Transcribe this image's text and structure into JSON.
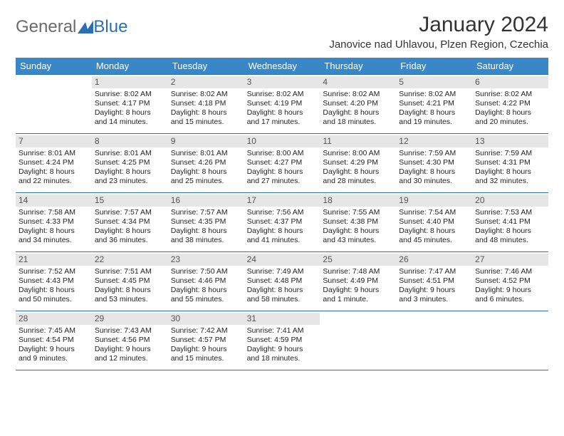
{
  "brand": {
    "general": "General",
    "blue": "Blue"
  },
  "title": "January 2024",
  "location": "Janovice nad Uhlavou, Plzen Region, Czechia",
  "colors": {
    "header_bg": "#3a87c8",
    "border": "#2a6fb5",
    "daynum_bg": "#e6e6e6"
  },
  "dow": [
    "Sunday",
    "Monday",
    "Tuesday",
    "Wednesday",
    "Thursday",
    "Friday",
    "Saturday"
  ],
  "weeks": [
    [
      {
        "n": "",
        "l1": "",
        "l2": "",
        "l3": "",
        "l4": ""
      },
      {
        "n": "1",
        "l1": "Sunrise: 8:02 AM",
        "l2": "Sunset: 4:17 PM",
        "l3": "Daylight: 8 hours",
        "l4": "and 14 minutes."
      },
      {
        "n": "2",
        "l1": "Sunrise: 8:02 AM",
        "l2": "Sunset: 4:18 PM",
        "l3": "Daylight: 8 hours",
        "l4": "and 15 minutes."
      },
      {
        "n": "3",
        "l1": "Sunrise: 8:02 AM",
        "l2": "Sunset: 4:19 PM",
        "l3": "Daylight: 8 hours",
        "l4": "and 17 minutes."
      },
      {
        "n": "4",
        "l1": "Sunrise: 8:02 AM",
        "l2": "Sunset: 4:20 PM",
        "l3": "Daylight: 8 hours",
        "l4": "and 18 minutes."
      },
      {
        "n": "5",
        "l1": "Sunrise: 8:02 AM",
        "l2": "Sunset: 4:21 PM",
        "l3": "Daylight: 8 hours",
        "l4": "and 19 minutes."
      },
      {
        "n": "6",
        "l1": "Sunrise: 8:02 AM",
        "l2": "Sunset: 4:22 PM",
        "l3": "Daylight: 8 hours",
        "l4": "and 20 minutes."
      }
    ],
    [
      {
        "n": "7",
        "l1": "Sunrise: 8:01 AM",
        "l2": "Sunset: 4:24 PM",
        "l3": "Daylight: 8 hours",
        "l4": "and 22 minutes."
      },
      {
        "n": "8",
        "l1": "Sunrise: 8:01 AM",
        "l2": "Sunset: 4:25 PM",
        "l3": "Daylight: 8 hours",
        "l4": "and 23 minutes."
      },
      {
        "n": "9",
        "l1": "Sunrise: 8:01 AM",
        "l2": "Sunset: 4:26 PM",
        "l3": "Daylight: 8 hours",
        "l4": "and 25 minutes."
      },
      {
        "n": "10",
        "l1": "Sunrise: 8:00 AM",
        "l2": "Sunset: 4:27 PM",
        "l3": "Daylight: 8 hours",
        "l4": "and 27 minutes."
      },
      {
        "n": "11",
        "l1": "Sunrise: 8:00 AM",
        "l2": "Sunset: 4:29 PM",
        "l3": "Daylight: 8 hours",
        "l4": "and 28 minutes."
      },
      {
        "n": "12",
        "l1": "Sunrise: 7:59 AM",
        "l2": "Sunset: 4:30 PM",
        "l3": "Daylight: 8 hours",
        "l4": "and 30 minutes."
      },
      {
        "n": "13",
        "l1": "Sunrise: 7:59 AM",
        "l2": "Sunset: 4:31 PM",
        "l3": "Daylight: 8 hours",
        "l4": "and 32 minutes."
      }
    ],
    [
      {
        "n": "14",
        "l1": "Sunrise: 7:58 AM",
        "l2": "Sunset: 4:33 PM",
        "l3": "Daylight: 8 hours",
        "l4": "and 34 minutes."
      },
      {
        "n": "15",
        "l1": "Sunrise: 7:57 AM",
        "l2": "Sunset: 4:34 PM",
        "l3": "Daylight: 8 hours",
        "l4": "and 36 minutes."
      },
      {
        "n": "16",
        "l1": "Sunrise: 7:57 AM",
        "l2": "Sunset: 4:35 PM",
        "l3": "Daylight: 8 hours",
        "l4": "and 38 minutes."
      },
      {
        "n": "17",
        "l1": "Sunrise: 7:56 AM",
        "l2": "Sunset: 4:37 PM",
        "l3": "Daylight: 8 hours",
        "l4": "and 41 minutes."
      },
      {
        "n": "18",
        "l1": "Sunrise: 7:55 AM",
        "l2": "Sunset: 4:38 PM",
        "l3": "Daylight: 8 hours",
        "l4": "and 43 minutes."
      },
      {
        "n": "19",
        "l1": "Sunrise: 7:54 AM",
        "l2": "Sunset: 4:40 PM",
        "l3": "Daylight: 8 hours",
        "l4": "and 45 minutes."
      },
      {
        "n": "20",
        "l1": "Sunrise: 7:53 AM",
        "l2": "Sunset: 4:41 PM",
        "l3": "Daylight: 8 hours",
        "l4": "and 48 minutes."
      }
    ],
    [
      {
        "n": "21",
        "l1": "Sunrise: 7:52 AM",
        "l2": "Sunset: 4:43 PM",
        "l3": "Daylight: 8 hours",
        "l4": "and 50 minutes."
      },
      {
        "n": "22",
        "l1": "Sunrise: 7:51 AM",
        "l2": "Sunset: 4:45 PM",
        "l3": "Daylight: 8 hours",
        "l4": "and 53 minutes."
      },
      {
        "n": "23",
        "l1": "Sunrise: 7:50 AM",
        "l2": "Sunset: 4:46 PM",
        "l3": "Daylight: 8 hours",
        "l4": "and 55 minutes."
      },
      {
        "n": "24",
        "l1": "Sunrise: 7:49 AM",
        "l2": "Sunset: 4:48 PM",
        "l3": "Daylight: 8 hours",
        "l4": "and 58 minutes."
      },
      {
        "n": "25",
        "l1": "Sunrise: 7:48 AM",
        "l2": "Sunset: 4:49 PM",
        "l3": "Daylight: 9 hours",
        "l4": "and 1 minute."
      },
      {
        "n": "26",
        "l1": "Sunrise: 7:47 AM",
        "l2": "Sunset: 4:51 PM",
        "l3": "Daylight: 9 hours",
        "l4": "and 3 minutes."
      },
      {
        "n": "27",
        "l1": "Sunrise: 7:46 AM",
        "l2": "Sunset: 4:52 PM",
        "l3": "Daylight: 9 hours",
        "l4": "and 6 minutes."
      }
    ],
    [
      {
        "n": "28",
        "l1": "Sunrise: 7:45 AM",
        "l2": "Sunset: 4:54 PM",
        "l3": "Daylight: 9 hours",
        "l4": "and 9 minutes."
      },
      {
        "n": "29",
        "l1": "Sunrise: 7:43 AM",
        "l2": "Sunset: 4:56 PM",
        "l3": "Daylight: 9 hours",
        "l4": "and 12 minutes."
      },
      {
        "n": "30",
        "l1": "Sunrise: 7:42 AM",
        "l2": "Sunset: 4:57 PM",
        "l3": "Daylight: 9 hours",
        "l4": "and 15 minutes."
      },
      {
        "n": "31",
        "l1": "Sunrise: 7:41 AM",
        "l2": "Sunset: 4:59 PM",
        "l3": "Daylight: 9 hours",
        "l4": "and 18 minutes."
      },
      {
        "n": "",
        "l1": "",
        "l2": "",
        "l3": "",
        "l4": ""
      },
      {
        "n": "",
        "l1": "",
        "l2": "",
        "l3": "",
        "l4": ""
      },
      {
        "n": "",
        "l1": "",
        "l2": "",
        "l3": "",
        "l4": ""
      }
    ]
  ]
}
